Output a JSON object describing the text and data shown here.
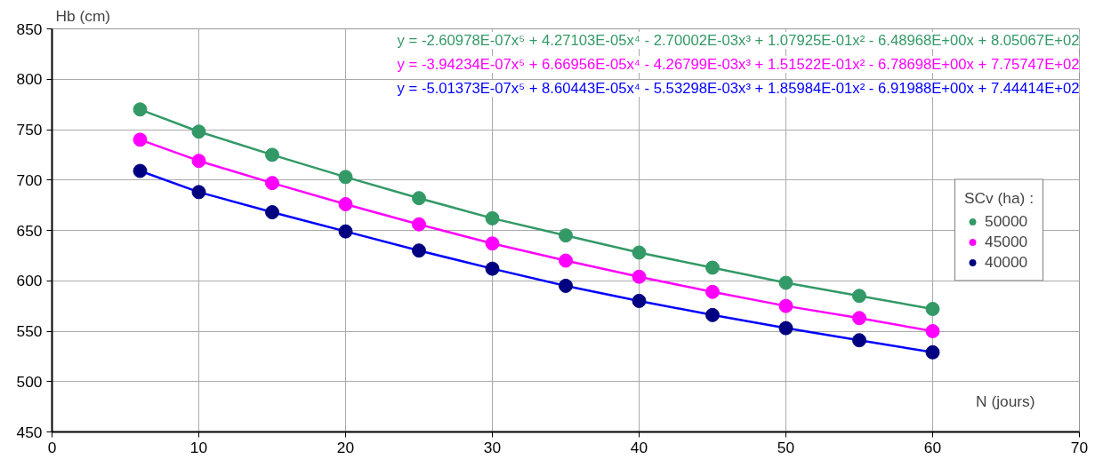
{
  "chart_data": {
    "type": "scatter",
    "xlabel": "N (jours)",
    "ylabel": "Hb (cm)",
    "legend_title": "SCv (ha) :",
    "x": [
      6,
      10,
      15,
      20,
      25,
      30,
      35,
      40,
      45,
      50,
      55,
      60
    ],
    "series": [
      {
        "type": "line",
        "marker": "none",
        "color": "#339966",
        "x": [
          6,
          10,
          15,
          20,
          25,
          30,
          35,
          40,
          45,
          50,
          55,
          60
        ],
        "values": [
          770,
          748,
          725,
          703,
          682,
          662,
          645,
          628,
          613,
          598,
          585,
          572
        ]
      },
      {
        "type": "line",
        "marker": "none",
        "color": "#ff00ff",
        "x": [
          6,
          10,
          15,
          20,
          25,
          30,
          35,
          40,
          45,
          50,
          55,
          60
        ],
        "values": [
          740,
          719,
          697,
          676,
          656,
          637,
          620,
          604,
          589,
          575,
          563,
          550
        ]
      },
      {
        "type": "line",
        "marker": "none",
        "color": "#0000ff",
        "x": [
          6,
          10,
          15,
          20,
          25,
          30,
          35,
          40,
          45,
          50,
          55,
          60
        ],
        "values": [
          709,
          688,
          668,
          649,
          630,
          612,
          595,
          580,
          566,
          553,
          541,
          529
        ]
      },
      {
        "name": "50000",
        "marker": "circle",
        "color": "#339966",
        "values": [
          770,
          748,
          725,
          703,
          682,
          662,
          645,
          628,
          613,
          598,
          585,
          572
        ]
      },
      {
        "name": "45000",
        "marker": "circle",
        "color": "#ff00ff",
        "values": [
          740,
          719,
          697,
          676,
          656,
          637,
          620,
          604,
          589,
          575,
          563,
          550
        ]
      },
      {
        "name": "40000",
        "marker": "circle",
        "color": "#000080",
        "values": [
          709,
          688,
          668,
          649,
          630,
          612,
          595,
          580,
          566,
          553,
          541,
          529
        ]
      }
    ],
    "annotations": [
      "y = -2.60978E-07x⁵ + 4.27103E-05x⁴ - 2.70002E-03x³ + 1.07925E-01x² - 6.48968E+00x + 8.05067E+02",
      "y = -3.94234E-07x⁵ + 6.66956E-05x⁴ - 4.26799E-03x³ + 1.51522E-01x² - 6.78698E+00x + 7.75747E+02",
      "y = -5.01373E-07x⁵ + 8.60443E-05x⁴ - 5.53298E-03x³ + 1.85984E-01x² - 6.91988E+00x + 7.44414E+02"
    ],
    "xlim": [
      0,
      70
    ],
    "ylim": [
      450,
      850
    ],
    "xticks": [
      0,
      10,
      20,
      30,
      40,
      50,
      60,
      70
    ],
    "yticks": [
      450,
      500,
      550,
      600,
      650,
      700,
      750,
      800,
      850
    ],
    "grid": true,
    "legend": "right",
    "line_style": "solid"
  }
}
